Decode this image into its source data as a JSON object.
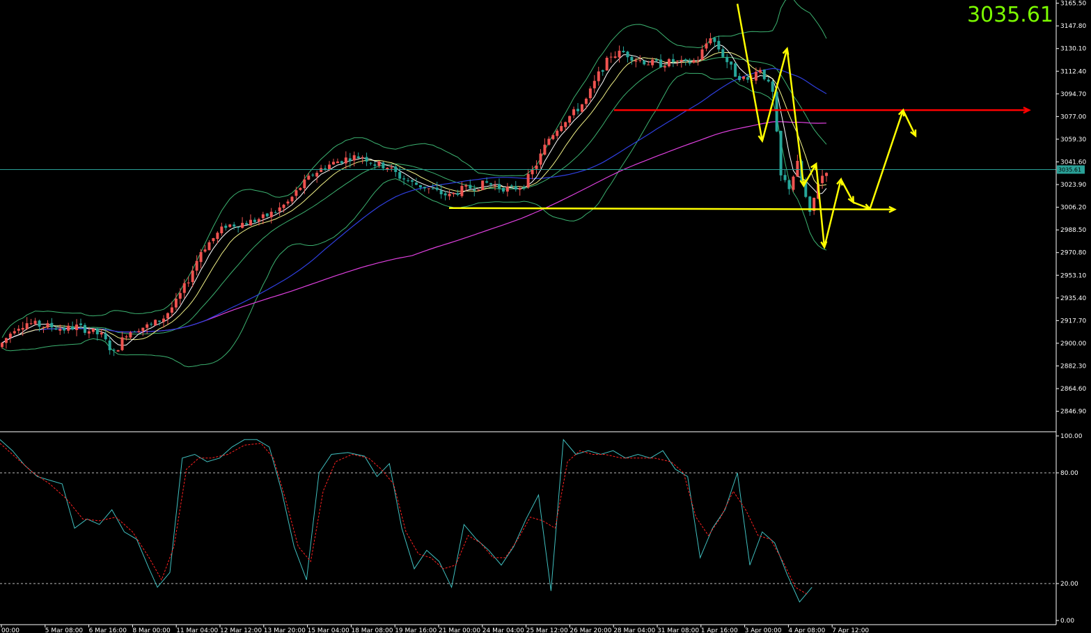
{
  "header": {
    "current_price": "3035.61"
  },
  "colors": {
    "background": "#000000",
    "bull_candle": "#ef5350",
    "bear_candle": "#26a69a",
    "bollinger": "#3cb371",
    "ma_fast": "#ffffff",
    "ma_yellow": "#f5f58a",
    "ma_blue": "#2f3fe0",
    "ma_magenta": "#e040e0",
    "stoch_main": "#40c0c0",
    "stoch_signal": "#ff2020",
    "annotation_yellow": "#ffff00",
    "annotation_red": "#ff0000",
    "price_line": "#2aa198",
    "price_big": "#7CFC00"
  },
  "chart_data": [
    {
      "type": "candlestick",
      "symbol_price": "3035.61",
      "ylim": [
        2832.0,
        3168.0
      ],
      "y_ticks": [
        "3165.50",
        "3147.80",
        "3130.10",
        "3112.40",
        "3094.70",
        "3077.00",
        "3059.30",
        "3041.60",
        "3023.90",
        "3006.20",
        "2988.50",
        "2970.80",
        "2953.10",
        "2935.40",
        "2917.70",
        "2900.00",
        "2882.30",
        "2864.60",
        "2846.90"
      ],
      "x_ticks": [
        "00:00",
        "5 Mar 08:00",
        "6 Mar 16:00",
        "8 Mar 00:00",
        "11 Mar 04:00",
        "12 Mar 12:00",
        "13 Mar 20:00",
        "15 Mar 04:00",
        "18 Mar 08:00",
        "19 Mar 16:00",
        "21 Mar 00:00",
        "24 Mar 04:00",
        "25 Mar 12:00",
        "26 Mar 20:00",
        "28 Mar 04:00",
        "31 Mar 08:00",
        "1 Apr 16:00",
        "3 Apr 00:00",
        "4 Apr 08:00",
        "7 Apr 12:00"
      ],
      "price_path": [
        [
          0,
          2900
        ],
        [
          3,
          2912
        ],
        [
          6,
          2916
        ],
        [
          9,
          2914
        ],
        [
          12,
          2913
        ],
        [
          15,
          2911
        ],
        [
          18,
          2913
        ],
        [
          21,
          2910
        ],
        [
          24,
          2906
        ],
        [
          27,
          2892
        ],
        [
          30,
          2908
        ],
        [
          33,
          2912
        ],
        [
          36,
          2914
        ],
        [
          39,
          2920
        ],
        [
          42,
          2932
        ],
        [
          45,
          2950
        ],
        [
          48,
          2972
        ],
        [
          51,
          2982
        ],
        [
          54,
          2992
        ],
        [
          57,
          2993
        ],
        [
          60,
          2995
        ],
        [
          63,
          2998
        ],
        [
          66,
          3003
        ],
        [
          69,
          3010
        ],
        [
          72,
          3022
        ],
        [
          75,
          3032
        ],
        [
          78,
          3038
        ],
        [
          81,
          3042
        ],
        [
          84,
          3045
        ],
        [
          87,
          3046
        ],
        [
          90,
          3040
        ],
        [
          93,
          3038
        ],
        [
          96,
          3030
        ],
        [
          99,
          3025
        ],
        [
          102,
          3022
        ],
        [
          105,
          3018
        ],
        [
          108,
          3015
        ],
        [
          111,
          3020
        ],
        [
          114,
          3022
        ],
        [
          117,
          3025
        ],
        [
          120,
          3022
        ],
        [
          123,
          3020
        ],
        [
          126,
          3024
        ],
        [
          129,
          3040
        ],
        [
          132,
          3060
        ],
        [
          135,
          3072
        ],
        [
          138,
          3080
        ],
        [
          141,
          3090
        ],
        [
          144,
          3110
        ],
        [
          147,
          3125
        ],
        [
          150,
          3127
        ],
        [
          153,
          3122
        ],
        [
          156,
          3119
        ],
        [
          159,
          3118
        ],
        [
          162,
          3120
        ],
        [
          165,
          3118
        ],
        [
          168,
          3122
        ],
        [
          171,
          3140
        ],
        [
          174,
          3125
        ],
        [
          177,
          3110
        ],
        [
          180,
          3105
        ],
        [
          183,
          3115
        ],
        [
          186,
          3095
        ],
        [
          188,
          3030
        ],
        [
          190,
          3022
        ],
        [
          192,
          3040
        ],
        [
          195,
          3000
        ],
        [
          197,
          3026
        ],
        [
          199,
          3035.61
        ]
      ],
      "candles_count": 200,
      "indicators": [
        "Bollinger Bands",
        "Moving Average (fast)",
        "Moving Average (yellow)",
        "Moving Average (blue)",
        "Moving Average (magenta)"
      ],
      "horizontal_levels": [
        {
          "price": 3082,
          "color": "red",
          "style": "arrow-line"
        },
        {
          "price": 3005,
          "color": "yellow",
          "style": "arrow-line"
        }
      ],
      "annotations": [
        {
          "type": "zigzag-forecast",
          "color": "yellow",
          "points": [
            [
              178,
              3165
            ],
            [
              184,
              3058
            ],
            [
              190,
              3130
            ],
            [
              194,
              3023
            ],
            [
              197,
              3040
            ],
            [
              199,
              2975
            ],
            [
              203,
              3028
            ],
            [
              206,
              3010
            ],
            [
              210,
              3005
            ],
            [
              218,
              3082
            ],
            [
              221,
              3062
            ]
          ]
        }
      ]
    },
    {
      "type": "line",
      "indicator": "Stochastic Oscillator",
      "ylim": [
        0,
        100
      ],
      "y_ticks": [
        "100.00",
        "80.00",
        "20.00",
        "0.00"
      ],
      "levels": [
        80,
        20
      ],
      "main_path": [
        [
          0,
          98
        ],
        [
          3,
          92
        ],
        [
          6,
          84
        ],
        [
          9,
          78
        ],
        [
          12,
          76
        ],
        [
          15,
          74
        ],
        [
          18,
          50
        ],
        [
          21,
          55
        ],
        [
          24,
          52
        ],
        [
          27,
          60
        ],
        [
          30,
          48
        ],
        [
          33,
          44
        ],
        [
          36,
          28
        ],
        [
          38,
          18
        ],
        [
          41,
          26
        ],
        [
          44,
          88
        ],
        [
          47,
          90
        ],
        [
          50,
          86
        ],
        [
          53,
          88
        ],
        [
          56,
          94
        ],
        [
          59,
          98
        ],
        [
          62,
          98
        ],
        [
          65,
          94
        ],
        [
          68,
          70
        ],
        [
          71,
          40
        ],
        [
          74,
          22
        ],
        [
          77,
          80
        ],
        [
          80,
          90
        ],
        [
          84,
          91
        ],
        [
          88,
          89
        ],
        [
          91,
          78
        ],
        [
          94,
          85
        ],
        [
          97,
          50
        ],
        [
          100,
          28
        ],
        [
          103,
          38
        ],
        [
          106,
          32
        ],
        [
          109,
          18
        ],
        [
          112,
          52
        ],
        [
          115,
          44
        ],
        [
          118,
          38
        ],
        [
          121,
          30
        ],
        [
          124,
          40
        ],
        [
          127,
          55
        ],
        [
          130,
          68
        ],
        [
          133,
          16
        ],
        [
          136,
          98
        ],
        [
          139,
          90
        ],
        [
          142,
          92
        ],
        [
          145,
          90
        ],
        [
          148,
          92
        ],
        [
          151,
          88
        ],
        [
          154,
          90
        ],
        [
          157,
          88
        ],
        [
          160,
          92
        ],
        [
          163,
          82
        ],
        [
          166,
          78
        ],
        [
          169,
          34
        ],
        [
          172,
          50
        ],
        [
          175,
          60
        ],
        [
          178,
          80
        ],
        [
          181,
          30
        ],
        [
          184,
          48
        ],
        [
          187,
          42
        ],
        [
          190,
          25
        ],
        [
          193,
          10
        ],
        [
          196,
          18
        ]
      ],
      "signal_path": [
        [
          0,
          96
        ],
        [
          4,
          88
        ],
        [
          8,
          80
        ],
        [
          12,
          74
        ],
        [
          16,
          66
        ],
        [
          20,
          55
        ],
        [
          24,
          54
        ],
        [
          28,
          56
        ],
        [
          32,
          48
        ],
        [
          36,
          34
        ],
        [
          39,
          22
        ],
        [
          42,
          40
        ],
        [
          45,
          82
        ],
        [
          48,
          88
        ],
        [
          51,
          88
        ],
        [
          55,
          90
        ],
        [
          59,
          95
        ],
        [
          63,
          96
        ],
        [
          66,
          88
        ],
        [
          69,
          65
        ],
        [
          72,
          40
        ],
        [
          75,
          32
        ],
        [
          78,
          70
        ],
        [
          81,
          86
        ],
        [
          85,
          90
        ],
        [
          89,
          88
        ],
        [
          92,
          82
        ],
        [
          95,
          74
        ],
        [
          98,
          48
        ],
        [
          101,
          36
        ],
        [
          104,
          34
        ],
        [
          107,
          28
        ],
        [
          110,
          30
        ],
        [
          113,
          46
        ],
        [
          116,
          42
        ],
        [
          119,
          34
        ],
        [
          122,
          34
        ],
        [
          125,
          44
        ],
        [
          128,
          56
        ],
        [
          131,
          54
        ],
        [
          134,
          50
        ],
        [
          137,
          86
        ],
        [
          140,
          92
        ],
        [
          143,
          90
        ],
        [
          146,
          90
        ],
        [
          150,
          88
        ],
        [
          154,
          88
        ],
        [
          158,
          88
        ],
        [
          162,
          86
        ],
        [
          165,
          80
        ],
        [
          168,
          56
        ],
        [
          171,
          46
        ],
        [
          174,
          56
        ],
        [
          177,
          70
        ],
        [
          180,
          60
        ],
        [
          183,
          46
        ],
        [
          186,
          44
        ],
        [
          189,
          32
        ],
        [
          192,
          18
        ],
        [
          195,
          14
        ]
      ]
    }
  ]
}
